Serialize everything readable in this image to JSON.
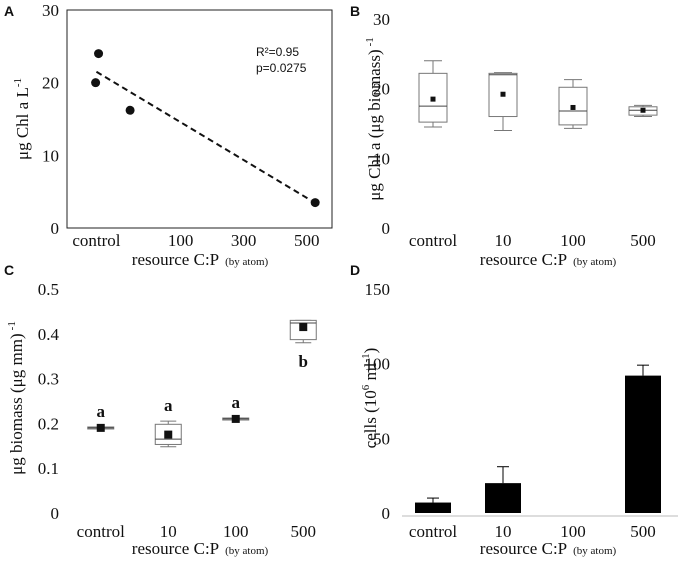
{
  "chart_data": [
    {
      "panel": "A",
      "type": "scatter",
      "ylabel": "μg Chl a L",
      "ylabel_sup": "-1",
      "xlabel": "resource C:P",
      "xlabel_suffix": "(by atom)",
      "ylim": [
        0,
        30
      ],
      "yticks": [
        "0",
        "10",
        "20",
        "30"
      ],
      "xtick_labels": [
        "control",
        "100",
        "300",
        "500"
      ],
      "xtick_values": [
        0,
        200,
        350,
        500
      ],
      "points": [
        {
          "x": -2,
          "y": 20
        },
        {
          "x": 5,
          "y": 24
        },
        {
          "x": 80,
          "y": 16.2
        },
        {
          "x": 520,
          "y": 3.5
        }
      ],
      "trendline": {
        "x1": 0,
        "y1": 21.5,
        "x2": 510,
        "y2": 3.8
      },
      "annotations": [
        "R²=0.95",
        "p=0.0275"
      ]
    },
    {
      "panel": "B",
      "type": "box",
      "ylabel": "μg Chl a (μg biomass)",
      "ylabel_sup": "-1",
      "xlabel": "resource C:P",
      "xlabel_suffix": "(by atom)",
      "ylim": [
        0,
        30
      ],
      "yticks": [
        "0",
        "10",
        "20",
        "30"
      ],
      "categories": [
        "control",
        "10",
        "100",
        "500"
      ],
      "boxes": [
        {
          "min": 14.5,
          "q1": 15.2,
          "median": 17.5,
          "q3": 22.2,
          "max": 24,
          "mean": 18.5
        },
        {
          "min": 14,
          "q1": 16,
          "median": 22,
          "q3": 22.2,
          "max": 22.3,
          "mean": 19.2
        },
        {
          "min": 14.3,
          "q1": 14.8,
          "median": 16.8,
          "q3": 20.2,
          "max": 21.3,
          "mean": 17.3
        },
        {
          "min": 16,
          "q1": 16.2,
          "median": 16.9,
          "q3": 17.4,
          "max": 17.6,
          "mean": 16.9
        }
      ]
    },
    {
      "panel": "C",
      "type": "box",
      "ylabel": "μg biomass (μg mm)",
      "ylabel_sup": "-1",
      "xlabel": "resource C:P",
      "xlabel_suffix": "(by atom)",
      "ylim": [
        0,
        0.5
      ],
      "yticks": [
        "0",
        "0.1",
        "0.2",
        "0.3",
        "0.4",
        "0.5"
      ],
      "categories": [
        "control",
        "10",
        "100",
        "500"
      ],
      "boxes": [
        {
          "min": 0.188,
          "q1": 0.188,
          "median": 0.19,
          "q3": 0.192,
          "max": 0.192,
          "mean": 0.19
        },
        {
          "min": 0.148,
          "q1": 0.153,
          "median": 0.165,
          "q3": 0.198,
          "max": 0.205,
          "mean": 0.175
        },
        {
          "min": 0.208,
          "q1": 0.208,
          "median": 0.21,
          "q3": 0.212,
          "max": 0.212,
          "mean": 0.21
        },
        {
          "min": 0.38,
          "q1": 0.387,
          "median": 0.424,
          "q3": 0.43,
          "max": 0.43,
          "mean": 0.415
        }
      ],
      "group_letters": [
        "a",
        "a",
        "a",
        "b"
      ]
    },
    {
      "panel": "D",
      "type": "bar",
      "ylabel": "cells (10",
      "ylabel_sup": "6",
      "ylabel_tail": " ml",
      "ylabel_tail_sup": "-1",
      "ylabel_close": ")",
      "xlabel": "resource C:P",
      "xlabel_suffix": "(by atom)",
      "ylim": [
        0,
        150
      ],
      "yticks": [
        "0",
        "50",
        "100",
        "150"
      ],
      "categories": [
        "control",
        "10",
        "100",
        "500"
      ],
      "values": [
        7,
        20,
        0,
        92
      ],
      "errors": [
        3,
        11,
        0,
        7
      ]
    }
  ]
}
